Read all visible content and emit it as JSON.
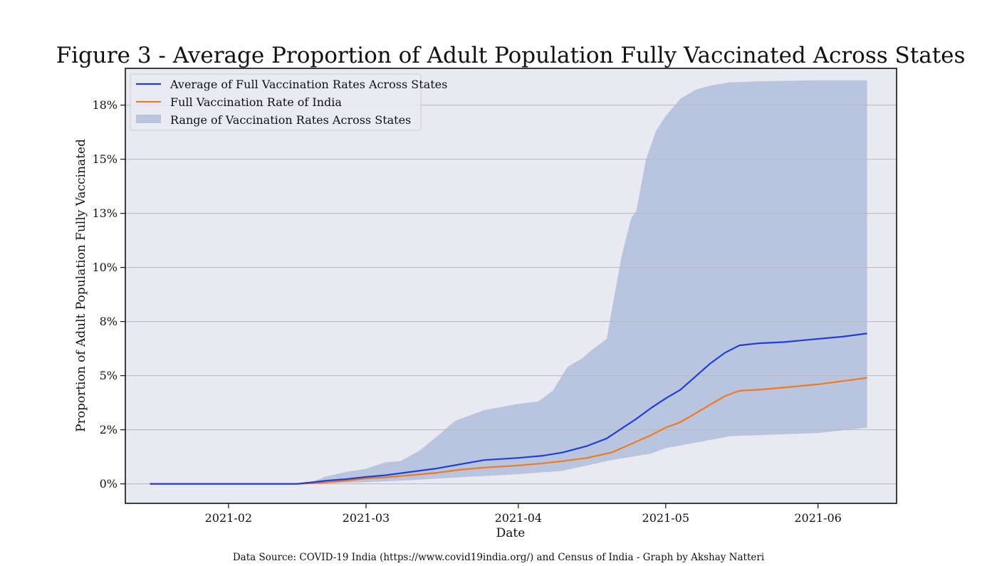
{
  "chart_data": {
    "type": "line",
    "title": "Figure 3 - Average Proportion of Adult Population Fully Vaccinated Across States",
    "xlabel": "Date",
    "ylabel": "Proportion of Adult Population Fully Vaccinated",
    "source": "Data Source:  COVID-19 India (https://www.covid19india.org/) and Census of India - Graph by Akshay Natteri",
    "x_ticks": [
      "2021-02",
      "2021-03",
      "2021-04",
      "2021-05",
      "2021-06"
    ],
    "y_ticks": [
      "0%",
      "2%",
      "5%",
      "8%",
      "10%",
      "13%",
      "15%",
      "18%"
    ],
    "y_tick_values": [
      0,
      2.5,
      5,
      7.5,
      10,
      12.5,
      15,
      17.5
    ],
    "ylim": [
      -0.9,
      19.2
    ],
    "xlim": [
      "2021-01-11",
      "2021-06-17"
    ],
    "grid": "horizontal",
    "legend_placement": "top-left",
    "colors": {
      "average": "#1f3fd6",
      "india": "#f07a1e",
      "range": "#b9c5de",
      "background": "#e9e9f2",
      "grid": "#b8b8b8"
    },
    "series": [
      {
        "name": "Average of Full Vaccination Rates Across States",
        "kind": "line",
        "points": [
          [
            "2021-01-16",
            0
          ],
          [
            "2021-02-01",
            0
          ],
          [
            "2021-02-15",
            0
          ],
          [
            "2021-02-18",
            0.07
          ],
          [
            "2021-02-21",
            0.15
          ],
          [
            "2021-02-25",
            0.22
          ],
          [
            "2021-03-01",
            0.32
          ],
          [
            "2021-03-05",
            0.4
          ],
          [
            "2021-03-10",
            0.55
          ],
          [
            "2021-03-15",
            0.7
          ],
          [
            "2021-03-20",
            0.9
          ],
          [
            "2021-03-25",
            1.1
          ],
          [
            "2021-04-01",
            1.2
          ],
          [
            "2021-04-06",
            1.3
          ],
          [
            "2021-04-10",
            1.45
          ],
          [
            "2021-04-15",
            1.75
          ],
          [
            "2021-04-19",
            2.1
          ],
          [
            "2021-04-22",
            2.55
          ],
          [
            "2021-04-25",
            3.0
          ],
          [
            "2021-04-28",
            3.5
          ],
          [
            "2021-05-01",
            3.95
          ],
          [
            "2021-05-04",
            4.35
          ],
          [
            "2021-05-07",
            4.95
          ],
          [
            "2021-05-10",
            5.55
          ],
          [
            "2021-05-13",
            6.05
          ],
          [
            "2021-05-16",
            6.4
          ],
          [
            "2021-05-20",
            6.5
          ],
          [
            "2021-05-25",
            6.55
          ],
          [
            "2021-06-01",
            6.7
          ],
          [
            "2021-06-06",
            6.8
          ],
          [
            "2021-06-11",
            6.95
          ]
        ]
      },
      {
        "name": "Full Vaccination Rate of India",
        "kind": "line",
        "points": [
          [
            "2021-01-16",
            0
          ],
          [
            "2021-02-01",
            0
          ],
          [
            "2021-02-15",
            0
          ],
          [
            "2021-02-20",
            0.05
          ],
          [
            "2021-02-25",
            0.15
          ],
          [
            "2021-03-01",
            0.25
          ],
          [
            "2021-03-05",
            0.3
          ],
          [
            "2021-03-10",
            0.4
          ],
          [
            "2021-03-15",
            0.5
          ],
          [
            "2021-03-20",
            0.65
          ],
          [
            "2021-03-25",
            0.75
          ],
          [
            "2021-04-01",
            0.85
          ],
          [
            "2021-04-06",
            0.95
          ],
          [
            "2021-04-10",
            1.05
          ],
          [
            "2021-04-15",
            1.2
          ],
          [
            "2021-04-20",
            1.45
          ],
          [
            "2021-04-25",
            1.95
          ],
          [
            "2021-04-28",
            2.25
          ],
          [
            "2021-05-01",
            2.6
          ],
          [
            "2021-05-04",
            2.85
          ],
          [
            "2021-05-07",
            3.25
          ],
          [
            "2021-05-10",
            3.65
          ],
          [
            "2021-05-13",
            4.05
          ],
          [
            "2021-05-16",
            4.3
          ],
          [
            "2021-05-20",
            4.35
          ],
          [
            "2021-05-25",
            4.45
          ],
          [
            "2021-06-01",
            4.6
          ],
          [
            "2021-06-06",
            4.75
          ],
          [
            "2021-06-11",
            4.9
          ]
        ]
      },
      {
        "name": "Range of Vaccination Rates Across States",
        "kind": "band",
        "upper": [
          [
            "2021-01-16",
            0
          ],
          [
            "2021-02-15",
            0
          ],
          [
            "2021-02-18",
            0.1
          ],
          [
            "2021-02-21",
            0.35
          ],
          [
            "2021-02-25",
            0.55
          ],
          [
            "2021-03-01",
            0.7
          ],
          [
            "2021-03-05",
            1.0
          ],
          [
            "2021-03-08",
            1.05
          ],
          [
            "2021-03-12",
            1.55
          ],
          [
            "2021-03-16",
            2.3
          ],
          [
            "2021-03-19",
            2.9
          ],
          [
            "2021-03-25",
            3.4
          ],
          [
            "2021-04-01",
            3.7
          ],
          [
            "2021-04-05",
            3.8
          ],
          [
            "2021-04-08",
            4.3
          ],
          [
            "2021-04-11",
            5.4
          ],
          [
            "2021-04-14",
            5.8
          ],
          [
            "2021-04-16",
            6.2
          ],
          [
            "2021-04-19",
            6.7
          ],
          [
            "2021-04-20",
            8.0
          ],
          [
            "2021-04-22",
            10.5
          ],
          [
            "2021-04-24",
            12.3
          ],
          [
            "2021-04-25",
            12.6
          ],
          [
            "2021-04-27",
            15.0
          ],
          [
            "2021-04-29",
            16.3
          ],
          [
            "2021-05-01",
            17.0
          ],
          [
            "2021-05-04",
            17.8
          ],
          [
            "2021-05-07",
            18.2
          ],
          [
            "2021-05-10",
            18.4
          ],
          [
            "2021-05-14",
            18.55
          ],
          [
            "2021-05-20",
            18.6
          ],
          [
            "2021-06-01",
            18.65
          ],
          [
            "2021-06-11",
            18.65
          ]
        ],
        "lower": [
          [
            "2021-01-16",
            0
          ],
          [
            "2021-02-15",
            0
          ],
          [
            "2021-02-20",
            0.02
          ],
          [
            "2021-03-01",
            0.08
          ],
          [
            "2021-03-10",
            0.17
          ],
          [
            "2021-03-20",
            0.3
          ],
          [
            "2021-04-01",
            0.45
          ],
          [
            "2021-04-10",
            0.6
          ],
          [
            "2021-04-15",
            0.85
          ],
          [
            "2021-04-20",
            1.1
          ],
          [
            "2021-04-28",
            1.4
          ],
          [
            "2021-05-01",
            1.65
          ],
          [
            "2021-05-07",
            1.9
          ],
          [
            "2021-05-14",
            2.2
          ],
          [
            "2021-05-20",
            2.25
          ],
          [
            "2021-06-01",
            2.35
          ],
          [
            "2021-06-11",
            2.6
          ]
        ]
      }
    ]
  }
}
